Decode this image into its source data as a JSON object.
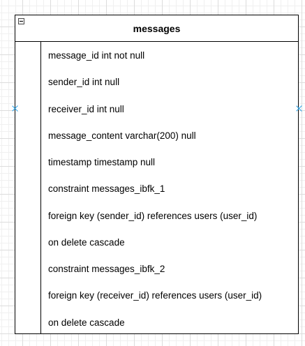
{
  "table": {
    "title": "messages",
    "rows": [
      "message_id int not null",
      "sender_id int null",
      "receiver_id int null",
      "message_content varchar(200) null",
      "timestamp timestamp null",
      "constraint messages_ibfk_1",
      "foreign key (sender_id) references users (user_id)",
      "on delete cascade",
      "constraint messages_ibfk_2",
      "foreign key (receiver_id) references users (user_id)",
      "on delete cascade"
    ]
  },
  "colors": {
    "grid": "#dcdcdc",
    "border": "#000000",
    "connection_point": "#29a3e8"
  }
}
